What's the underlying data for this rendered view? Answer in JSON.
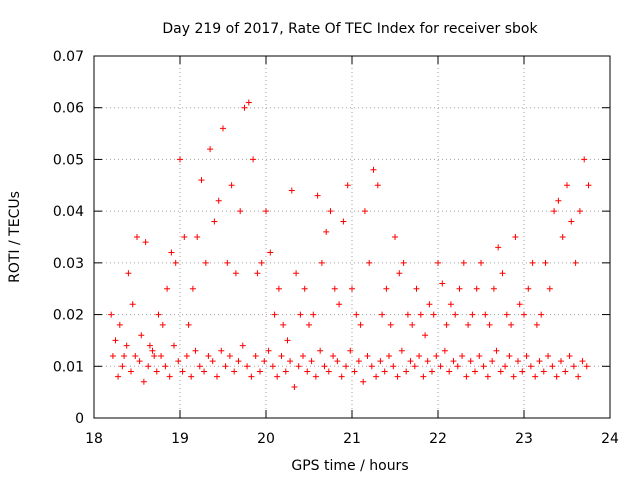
{
  "chart_data": {
    "type": "scatter",
    "title": "Day 219 of 2017, Rate Of TEC Index for receiver sbok",
    "xlabel": "GPS time / hours",
    "ylabel": "ROTI / TECUs",
    "xlim": [
      18,
      24
    ],
    "ylim": [
      0,
      0.07
    ],
    "xticks": [
      "18",
      "19",
      "20",
      "21",
      "22",
      "23",
      "24"
    ],
    "yticks": [
      "0",
      "0.01",
      "0.02",
      "0.03",
      "0.04",
      "0.05",
      "0.06",
      "0.07"
    ],
    "grid": true,
    "marker": "+",
    "color": "#ff0000",
    "series": [
      {
        "x": [
          18.2,
          18.25,
          18.3,
          18.35,
          18.4,
          18.45,
          18.5,
          18.55,
          18.6,
          18.65,
          18.7,
          18.75,
          18.8,
          18.85,
          18.9,
          18.95,
          19.0,
          19.05,
          19.1,
          19.15,
          19.2,
          19.25,
          19.3,
          19.35,
          19.4,
          19.45,
          19.5,
          19.55,
          19.6,
          19.65,
          19.7,
          19.75,
          19.8,
          19.85,
          19.9,
          19.95,
          20.0,
          20.05,
          20.1,
          20.15,
          20.2,
          20.25,
          20.3,
          20.35,
          20.4,
          20.45,
          20.5,
          20.55,
          20.6,
          20.65,
          20.7,
          20.75,
          20.8,
          20.85,
          20.9,
          20.95,
          21.0,
          21.05,
          21.1,
          21.15,
          21.2,
          21.25,
          21.3,
          21.35,
          21.4,
          21.45,
          21.5,
          21.55,
          21.6,
          21.65,
          21.7,
          21.75,
          21.8,
          21.85,
          21.9,
          21.95,
          22.0,
          22.05,
          22.1,
          22.15,
          22.2,
          22.25,
          22.3,
          22.35,
          22.4,
          22.45,
          22.5,
          22.55,
          22.6,
          22.65,
          22.7,
          22.75,
          22.8,
          22.85,
          22.9,
          22.95,
          23.0,
          23.05,
          23.1,
          23.15,
          23.2,
          23.25,
          23.3,
          23.35,
          23.4,
          23.45,
          23.5,
          23.55,
          23.6,
          23.65,
          23.7,
          23.75
        ],
        "y": [
          0.02,
          0.015,
          0.018,
          0.012,
          0.028,
          0.022,
          0.035,
          0.016,
          0.034,
          0.014,
          0.012,
          0.02,
          0.018,
          0.025,
          0.032,
          0.03,
          0.05,
          0.035,
          0.018,
          0.025,
          0.035,
          0.046,
          0.03,
          0.052,
          0.038,
          0.042,
          0.056,
          0.03,
          0.045,
          0.028,
          0.04,
          0.06,
          0.061,
          0.05,
          0.028,
          0.03,
          0.04,
          0.032,
          0.02,
          0.025,
          0.018,
          0.015,
          0.044,
          0.028,
          0.02,
          0.025,
          0.018,
          0.02,
          0.043,
          0.03,
          0.036,
          0.04,
          0.025,
          0.022,
          0.038,
          0.045,
          0.025,
          0.02,
          0.018,
          0.04,
          0.03,
          0.048,
          0.045,
          0.02,
          0.025,
          0.018,
          0.035,
          0.028,
          0.03,
          0.02,
          0.018,
          0.025,
          0.02,
          0.016,
          0.022,
          0.02,
          0.03,
          0.026,
          0.018,
          0.022,
          0.02,
          0.025,
          0.03,
          0.018,
          0.02,
          0.025,
          0.03,
          0.02,
          0.018,
          0.025,
          0.033,
          0.028,
          0.02,
          0.018,
          0.035,
          0.022,
          0.02,
          0.025,
          0.03,
          0.018,
          0.02,
          0.03,
          0.025,
          0.04,
          0.042,
          0.035,
          0.045,
          0.038,
          0.03,
          0.04,
          0.05,
          0.045
        ]
      },
      {
        "x": [
          18.22,
          18.28,
          18.33,
          18.38,
          18.43,
          18.48,
          18.53,
          18.58,
          18.63,
          18.68,
          18.73,
          18.78,
          18.83,
          18.88,
          18.93,
          18.98,
          19.03,
          19.08,
          19.13,
          19.18,
          19.23,
          19.28,
          19.33,
          19.38,
          19.43,
          19.48,
          19.53,
          19.58,
          19.63,
          19.68,
          19.73,
          19.78,
          19.83,
          19.88,
          19.93,
          19.98,
          20.03,
          20.08,
          20.13,
          20.18,
          20.23,
          20.28,
          20.33,
          20.38,
          20.43,
          20.48,
          20.53,
          20.58,
          20.63,
          20.68,
          20.73,
          20.78,
          20.83,
          20.88,
          20.93,
          20.98,
          21.03,
          21.08,
          21.13,
          21.18,
          21.23,
          21.28,
          21.33,
          21.38,
          21.43,
          21.48,
          21.53,
          21.58,
          21.63,
          21.68,
          21.73,
          21.78,
          21.83,
          21.88,
          21.93,
          21.98,
          22.03,
          22.08,
          22.13,
          22.18,
          22.23,
          22.28,
          22.33,
          22.38,
          22.43,
          22.48,
          22.53,
          22.58,
          22.63,
          22.68,
          22.73,
          22.78,
          22.83,
          22.88,
          22.93,
          22.98,
          23.03,
          23.08,
          23.13,
          23.18,
          23.23,
          23.28,
          23.33,
          23.38,
          23.43,
          23.48,
          23.53,
          23.58,
          23.63,
          23.68,
          23.73
        ],
        "y": [
          0.012,
          0.008,
          0.01,
          0.014,
          0.009,
          0.012,
          0.011,
          0.007,
          0.01,
          0.013,
          0.009,
          0.012,
          0.01,
          0.008,
          0.014,
          0.011,
          0.009,
          0.012,
          0.008,
          0.013,
          0.01,
          0.009,
          0.012,
          0.011,
          0.008,
          0.013,
          0.01,
          0.012,
          0.009,
          0.011,
          0.014,
          0.01,
          0.008,
          0.012,
          0.009,
          0.011,
          0.013,
          0.01,
          0.008,
          0.012,
          0.009,
          0.011,
          0.006,
          0.01,
          0.012,
          0.009,
          0.011,
          0.008,
          0.013,
          0.01,
          0.009,
          0.012,
          0.011,
          0.008,
          0.01,
          0.013,
          0.009,
          0.011,
          0.007,
          0.012,
          0.01,
          0.008,
          0.011,
          0.009,
          0.012,
          0.01,
          0.008,
          0.013,
          0.009,
          0.011,
          0.01,
          0.012,
          0.008,
          0.011,
          0.009,
          0.012,
          0.01,
          0.013,
          0.009,
          0.011,
          0.01,
          0.012,
          0.008,
          0.011,
          0.009,
          0.012,
          0.01,
          0.008,
          0.011,
          0.013,
          0.009,
          0.01,
          0.012,
          0.008,
          0.011,
          0.009,
          0.012,
          0.01,
          0.008,
          0.011,
          0.009,
          0.012,
          0.01,
          0.008,
          0.011,
          0.009,
          0.012,
          0.01,
          0.008,
          0.011,
          0.01
        ]
      }
    ]
  }
}
